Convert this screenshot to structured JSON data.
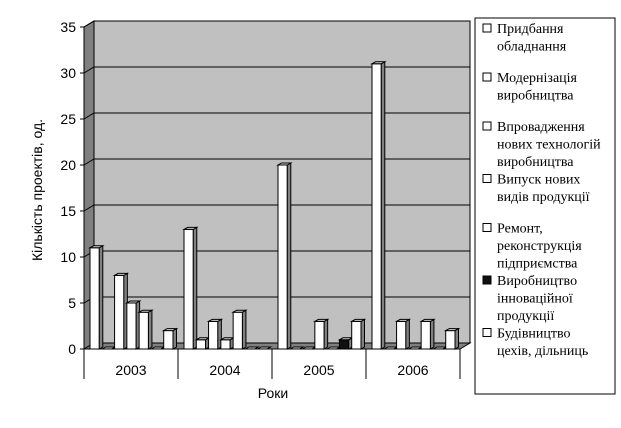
{
  "chart_data": {
    "type": "bar",
    "style": "3d-clustered-column",
    "categories": [
      "2003",
      "2004",
      "2005",
      "2006"
    ],
    "series": [
      {
        "name": "Придбання обладнання",
        "values": [
          11,
          13,
          20,
          31
        ],
        "color": "#ffffff"
      },
      {
        "name": "Модернізація виробництва",
        "values": [
          0,
          1,
          0,
          0
        ],
        "color": "#ffffff"
      },
      {
        "name": "Впровадження нових технологій виробництва",
        "values": [
          8,
          3,
          0,
          3
        ],
        "color": "#ffffff"
      },
      {
        "name": "Випуск нових видів продукції",
        "values": [
          5,
          1,
          3,
          0
        ],
        "color": "#ffffff"
      },
      {
        "name": "Ремонт, реконструкція підприємства",
        "values": [
          4,
          4,
          0,
          3
        ],
        "color": "#ffffff"
      },
      {
        "name": "Виробництво інноваційної продукції",
        "values": [
          0,
          0,
          1,
          0
        ],
        "color": "#111111"
      },
      {
        "name": "Будівництво цехів, дільниць",
        "values": [
          2,
          0,
          3,
          2
        ],
        "color": "#ffffff"
      }
    ],
    "xlabel": "Роки",
    "ylabel": "Кількість проектів, од.",
    "ylim": [
      0,
      35
    ],
    "yticks": [
      0,
      5,
      10,
      15,
      20,
      25,
      30,
      35
    ],
    "grid": true,
    "legend": "right",
    "colors": {
      "wall": "#c0c0c0",
      "floor": "#808080",
      "bar_side": "#808080",
      "bar_top": "#d0d0d0"
    }
  },
  "legend": {
    "items": [
      [
        "Придбання",
        "обладнання"
      ],
      [
        "Модернізація",
        "виробництва"
      ],
      [
        "Впровадження",
        "нових технологій",
        "виробництва"
      ],
      [
        "Випуск нових",
        "видів продукції"
      ],
      [
        "Ремонт,",
        "реконструкція",
        "підприємства"
      ],
      [
        "Виробництво",
        "інноваційної",
        "продукції"
      ],
      [
        "Будівництво",
        "цехів, дільниць"
      ]
    ]
  }
}
